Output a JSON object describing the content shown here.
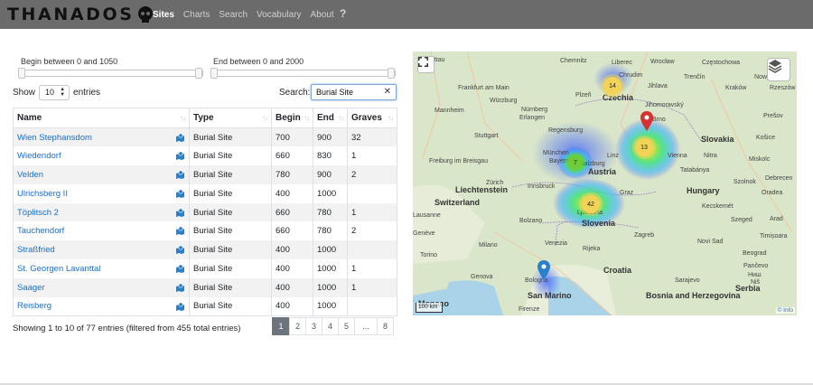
{
  "brand": {
    "name": "THANADOS"
  },
  "nav": {
    "items": [
      {
        "label": "Sites",
        "active": true
      },
      {
        "label": "Charts",
        "active": false
      },
      {
        "label": "Search",
        "active": false
      },
      {
        "label": "Vocabulary",
        "active": false
      },
      {
        "label": "About",
        "active": false
      }
    ],
    "help": "?"
  },
  "filters": {
    "begin_label": "Begin between 0 and 1050",
    "end_label": "End between 0 and 2000",
    "begin_range": [
      0,
      1050
    ],
    "end_range": [
      0,
      2000
    ]
  },
  "table_controls": {
    "show_label": "Show",
    "page_length": "10",
    "entries_label": "entries",
    "search_label": "Search:",
    "search_value": "Burial Site"
  },
  "table": {
    "columns": [
      "Name",
      "Type",
      "Begin",
      "End",
      "Graves"
    ],
    "rows": [
      {
        "name": "Wien Stephansdom",
        "type": "Burial Site",
        "begin": "700",
        "end": "900",
        "graves": "32"
      },
      {
        "name": "Wiedendorf",
        "type": "Burial Site",
        "begin": "660",
        "end": "830",
        "graves": "1"
      },
      {
        "name": "Velden",
        "type": "Burial Site",
        "begin": "780",
        "end": "900",
        "graves": "2"
      },
      {
        "name": "Ulrichsberg II",
        "type": "Burial Site",
        "begin": "400",
        "end": "1000",
        "graves": ""
      },
      {
        "name": "Töplitsch 2",
        "type": "Burial Site",
        "begin": "660",
        "end": "780",
        "graves": "1"
      },
      {
        "name": "Tauchendorf",
        "type": "Burial Site",
        "begin": "660",
        "end": "780",
        "graves": "2"
      },
      {
        "name": "Straßfried",
        "type": "Burial Site",
        "begin": "400",
        "end": "1000",
        "graves": ""
      },
      {
        "name": "St. Georgen Lavanttal",
        "type": "Burial Site",
        "begin": "400",
        "end": "1000",
        "graves": "1"
      },
      {
        "name": "Saager",
        "type": "Burial Site",
        "begin": "400",
        "end": "1000",
        "graves": "1"
      },
      {
        "name": "Reisberg",
        "type": "Burial Site",
        "begin": "400",
        "end": "1000",
        "graves": ""
      }
    ],
    "info": "Showing 1 to 10 of 77 entries (filtered from 455 total entries)",
    "pages": [
      "1",
      "2",
      "3",
      "4",
      "5",
      "...",
      "8"
    ],
    "current_page": "1"
  },
  "map": {
    "countries": [
      "Czechia",
      "Slovakia",
      "Austria",
      "Hungary",
      "Switzerland",
      "Liechtenstein",
      "Slovenia",
      "Croatia",
      "San Marino",
      "Bosnia and Herzegovina",
      "Serbia",
      "Monaco"
    ],
    "cities": [
      "Zittau",
      "Chemnitz",
      "Liberec",
      "Wrocław",
      "Częstochowa",
      "Chrudim",
      "Jihlava",
      "Trenčín",
      "Kraków",
      "Rzeszów",
      "Jihomoravský",
      "Nowy Sącz",
      "Frankfurt am Main",
      "Würzburg",
      "Nürnberg",
      "Plzeň",
      "Mannheim",
      "Erlangen",
      "Brno",
      "Prešov",
      "Košice",
      "Stuttgart",
      "Regensburg",
      "Nitra",
      "Miskolc",
      "München",
      "Bayern",
      "Linz",
      "Salzburg",
      "Vienna",
      "Tatabánya",
      "Debrecen",
      "Freiburg im Breisgau",
      "Innsbruck",
      "Graz",
      "Szolnok",
      "Oradea",
      "Zürich",
      "Kecskemét",
      "Lausanne",
      "Szeged",
      "Arad",
      "Bolzano",
      "Ljubljana",
      "Genève",
      "Milano",
      "Zagreb",
      "Novi Sad",
      "Timișoara",
      "Venezia",
      "Torino",
      "Rijeka",
      "Beograd",
      "Bologna",
      "Genova",
      "Firenze",
      "Sarajevo",
      "Pančevo",
      "Ниш",
      "Niš"
    ],
    "clusters": [
      {
        "count": "14",
        "color": "yellow"
      },
      {
        "count": "13",
        "color": "yellow"
      },
      {
        "count": "7",
        "color": "green"
      },
      {
        "count": "42",
        "color": "yellow"
      }
    ],
    "scale": "100 km",
    "attribution": "© Info",
    "controls": [
      "fullscreen-control",
      "layers-control"
    ]
  },
  "colors": {
    "navbar": "#6b6b6b",
    "link": "#1d6fc5",
    "active_page": "#6c757d",
    "marker_red": "#d63031",
    "marker_blue": "#2a81cb",
    "cluster_yellow": "#f1d357",
    "cluster_green": "#6ecc39"
  }
}
